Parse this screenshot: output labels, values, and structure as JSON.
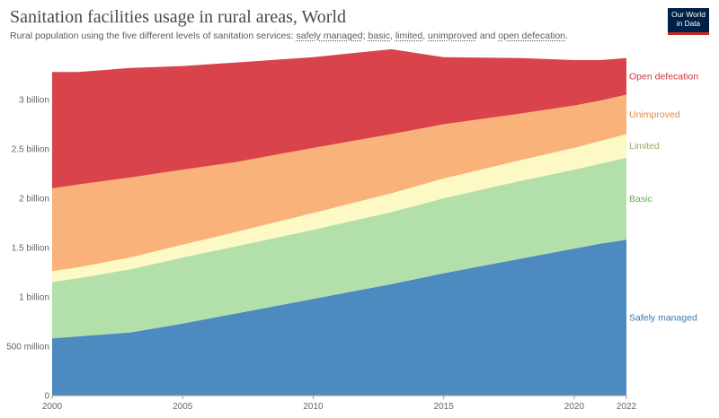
{
  "header": {
    "title": "Sanitation facilities usage in rural areas, World",
    "subtitle_prefix": "Rural population using the five different levels of sanitation services: ",
    "subtitle_terms": [
      "safely managed",
      "basic",
      "limited",
      "unimproved",
      "open defecation"
    ],
    "subtitle_sep1": "; ",
    "subtitle_sep2": ", ",
    "subtitle_sep3": ", ",
    "subtitle_sep4": " and ",
    "subtitle_end": "."
  },
  "logo": {
    "line1": "Our World",
    "line2": "in Data",
    "bg_color": "#002147",
    "accent_color": "#ce261e"
  },
  "chart_data": {
    "type": "area",
    "stacked": true,
    "x": [
      2000,
      2001,
      2003,
      2005,
      2007,
      2010,
      2013,
      2015,
      2018,
      2020,
      2021,
      2022
    ],
    "xticks": [
      "2000",
      "2005",
      "2010",
      "2015",
      "2020",
      "2022"
    ],
    "ylim": [
      0,
      3500000000
    ],
    "yticks": [
      {
        "value": 0,
        "label": "0"
      },
      {
        "value": 500000000,
        "label": "500 million"
      },
      {
        "value": 1000000000,
        "label": "1 billion"
      },
      {
        "value": 1500000000,
        "label": "1.5 billion"
      },
      {
        "value": 2000000000,
        "label": "2 billion"
      },
      {
        "value": 2500000000,
        "label": "2.5 billion"
      },
      {
        "value": 3000000000,
        "label": "3 billion"
      }
    ],
    "grid": true,
    "legend": "right-inline",
    "series": [
      {
        "name": "Safely managed",
        "color": "#4c8abf",
        "values": [
          580000000,
          600000000,
          640000000,
          730000000,
          830000000,
          980000000,
          1130000000,
          1240000000,
          1390000000,
          1490000000,
          1540000000,
          1580000000
        ]
      },
      {
        "name": "Basic",
        "color": "#b2dfaa",
        "values": [
          570000000,
          590000000,
          640000000,
          670000000,
          680000000,
          700000000,
          730000000,
          760000000,
          790000000,
          800000000,
          810000000,
          830000000
        ]
      },
      {
        "name": "Limited",
        "color": "#fdf9c4",
        "values": [
          110000000,
          110000000,
          120000000,
          130000000,
          145000000,
          170000000,
          190000000,
          200000000,
          210000000,
          220000000,
          230000000,
          240000000
        ]
      },
      {
        "name": "Unimproved",
        "color": "#f9b37a",
        "values": [
          840000000,
          840000000,
          810000000,
          760000000,
          710000000,
          660000000,
          600000000,
          550000000,
          470000000,
          430000000,
          410000000,
          400000000
        ]
      },
      {
        "name": "Open defecation",
        "color": "#d9434b",
        "values": [
          1180000000,
          1140000000,
          1110000000,
          1050000000,
          1010000000,
          920000000,
          860000000,
          680000000,
          560000000,
          460000000,
          410000000,
          370000000
        ]
      }
    ]
  }
}
